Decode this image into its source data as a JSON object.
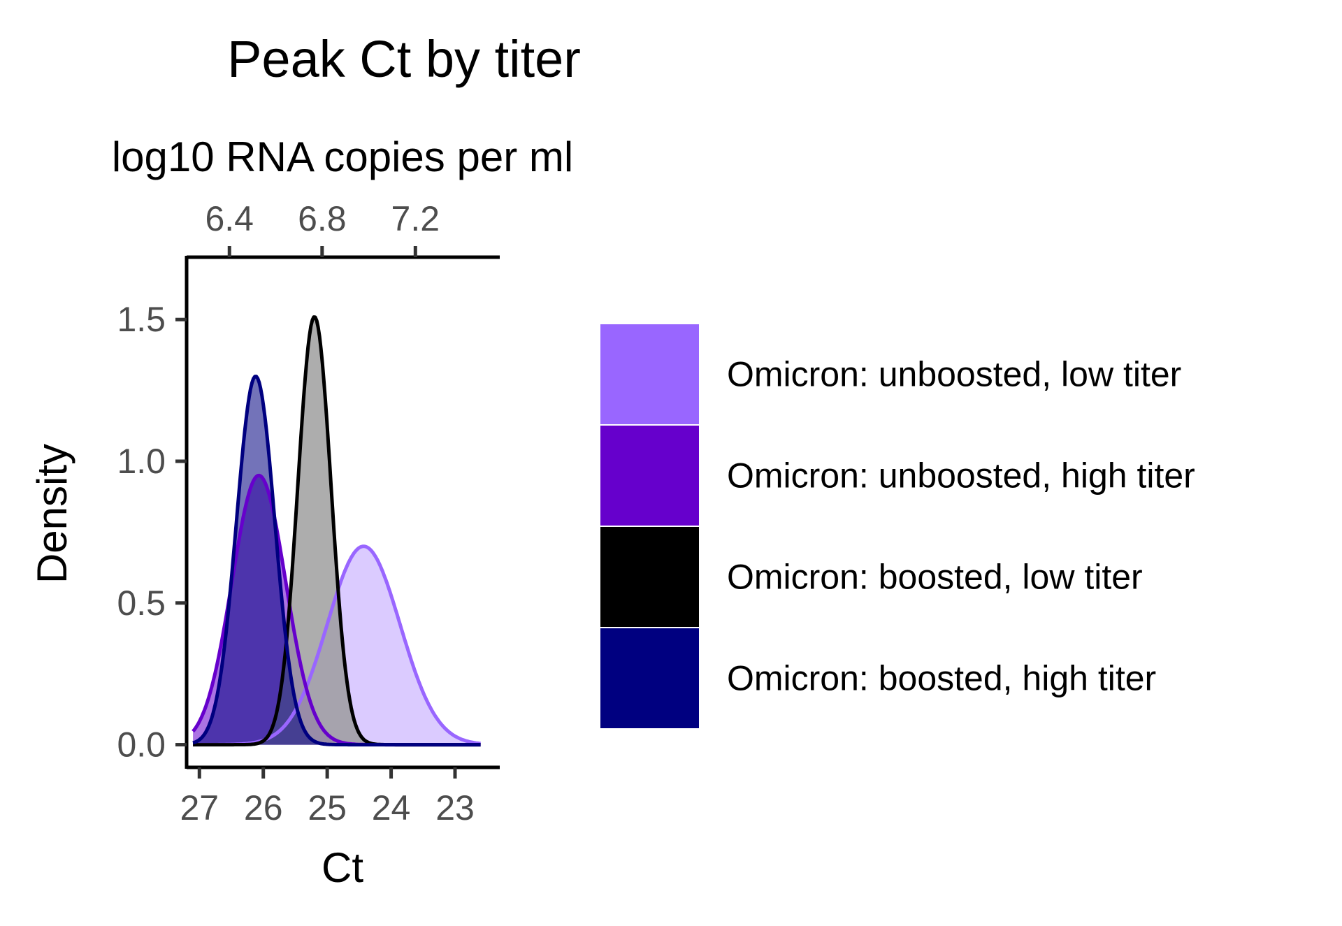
{
  "chart_data": {
    "type": "area",
    "title": "Peak Ct by titer",
    "secondary_axis": {
      "label": "log10 RNA copies per ml",
      "ticks": [
        {
          "value": 6.4,
          "ct": 26.53,
          "label": "6.4"
        },
        {
          "value": 6.8,
          "ct": 25.08,
          "label": "6.8"
        },
        {
          "value": 7.2,
          "ct": 23.62,
          "label": "7.2"
        }
      ]
    },
    "xlabel": "Ct",
    "ylabel": "Density",
    "x_reversed": true,
    "xlim": [
      27.2,
      22.3
    ],
    "ylim": [
      -0.08,
      1.72
    ],
    "xticks": [
      27,
      26,
      25,
      24,
      23
    ],
    "yticks": [
      {
        "value": 0.0,
        "label": "0.0"
      },
      {
        "value": 0.5,
        "label": "0.5"
      },
      {
        "value": 1.0,
        "label": "1.0"
      },
      {
        "value": 1.5,
        "label": "1.5"
      }
    ],
    "grid": false,
    "legend_position": "right",
    "series": [
      {
        "name": "Omicron: unboosted, low titer",
        "color": "#9966FF",
        "fill": "#D9C8FF",
        "mean": 24.43,
        "peak": 0.7,
        "sd": 0.57
      },
      {
        "name": "Omicron: unboosted, high titer",
        "color": "#6600CC",
        "fill": "#6600CC",
        "mean": 26.07,
        "peak": 0.95,
        "sd": 0.42
      },
      {
        "name": "Omicron: boosted, low titer",
        "color": "#000000",
        "fill": "#999999",
        "mean": 25.2,
        "peak": 1.51,
        "sd": 0.26
      },
      {
        "name": "Omicron: boosted, high titer",
        "color": "#000080",
        "fill": "#000080",
        "mean": 26.12,
        "peak": 1.3,
        "sd": 0.3
      }
    ]
  }
}
